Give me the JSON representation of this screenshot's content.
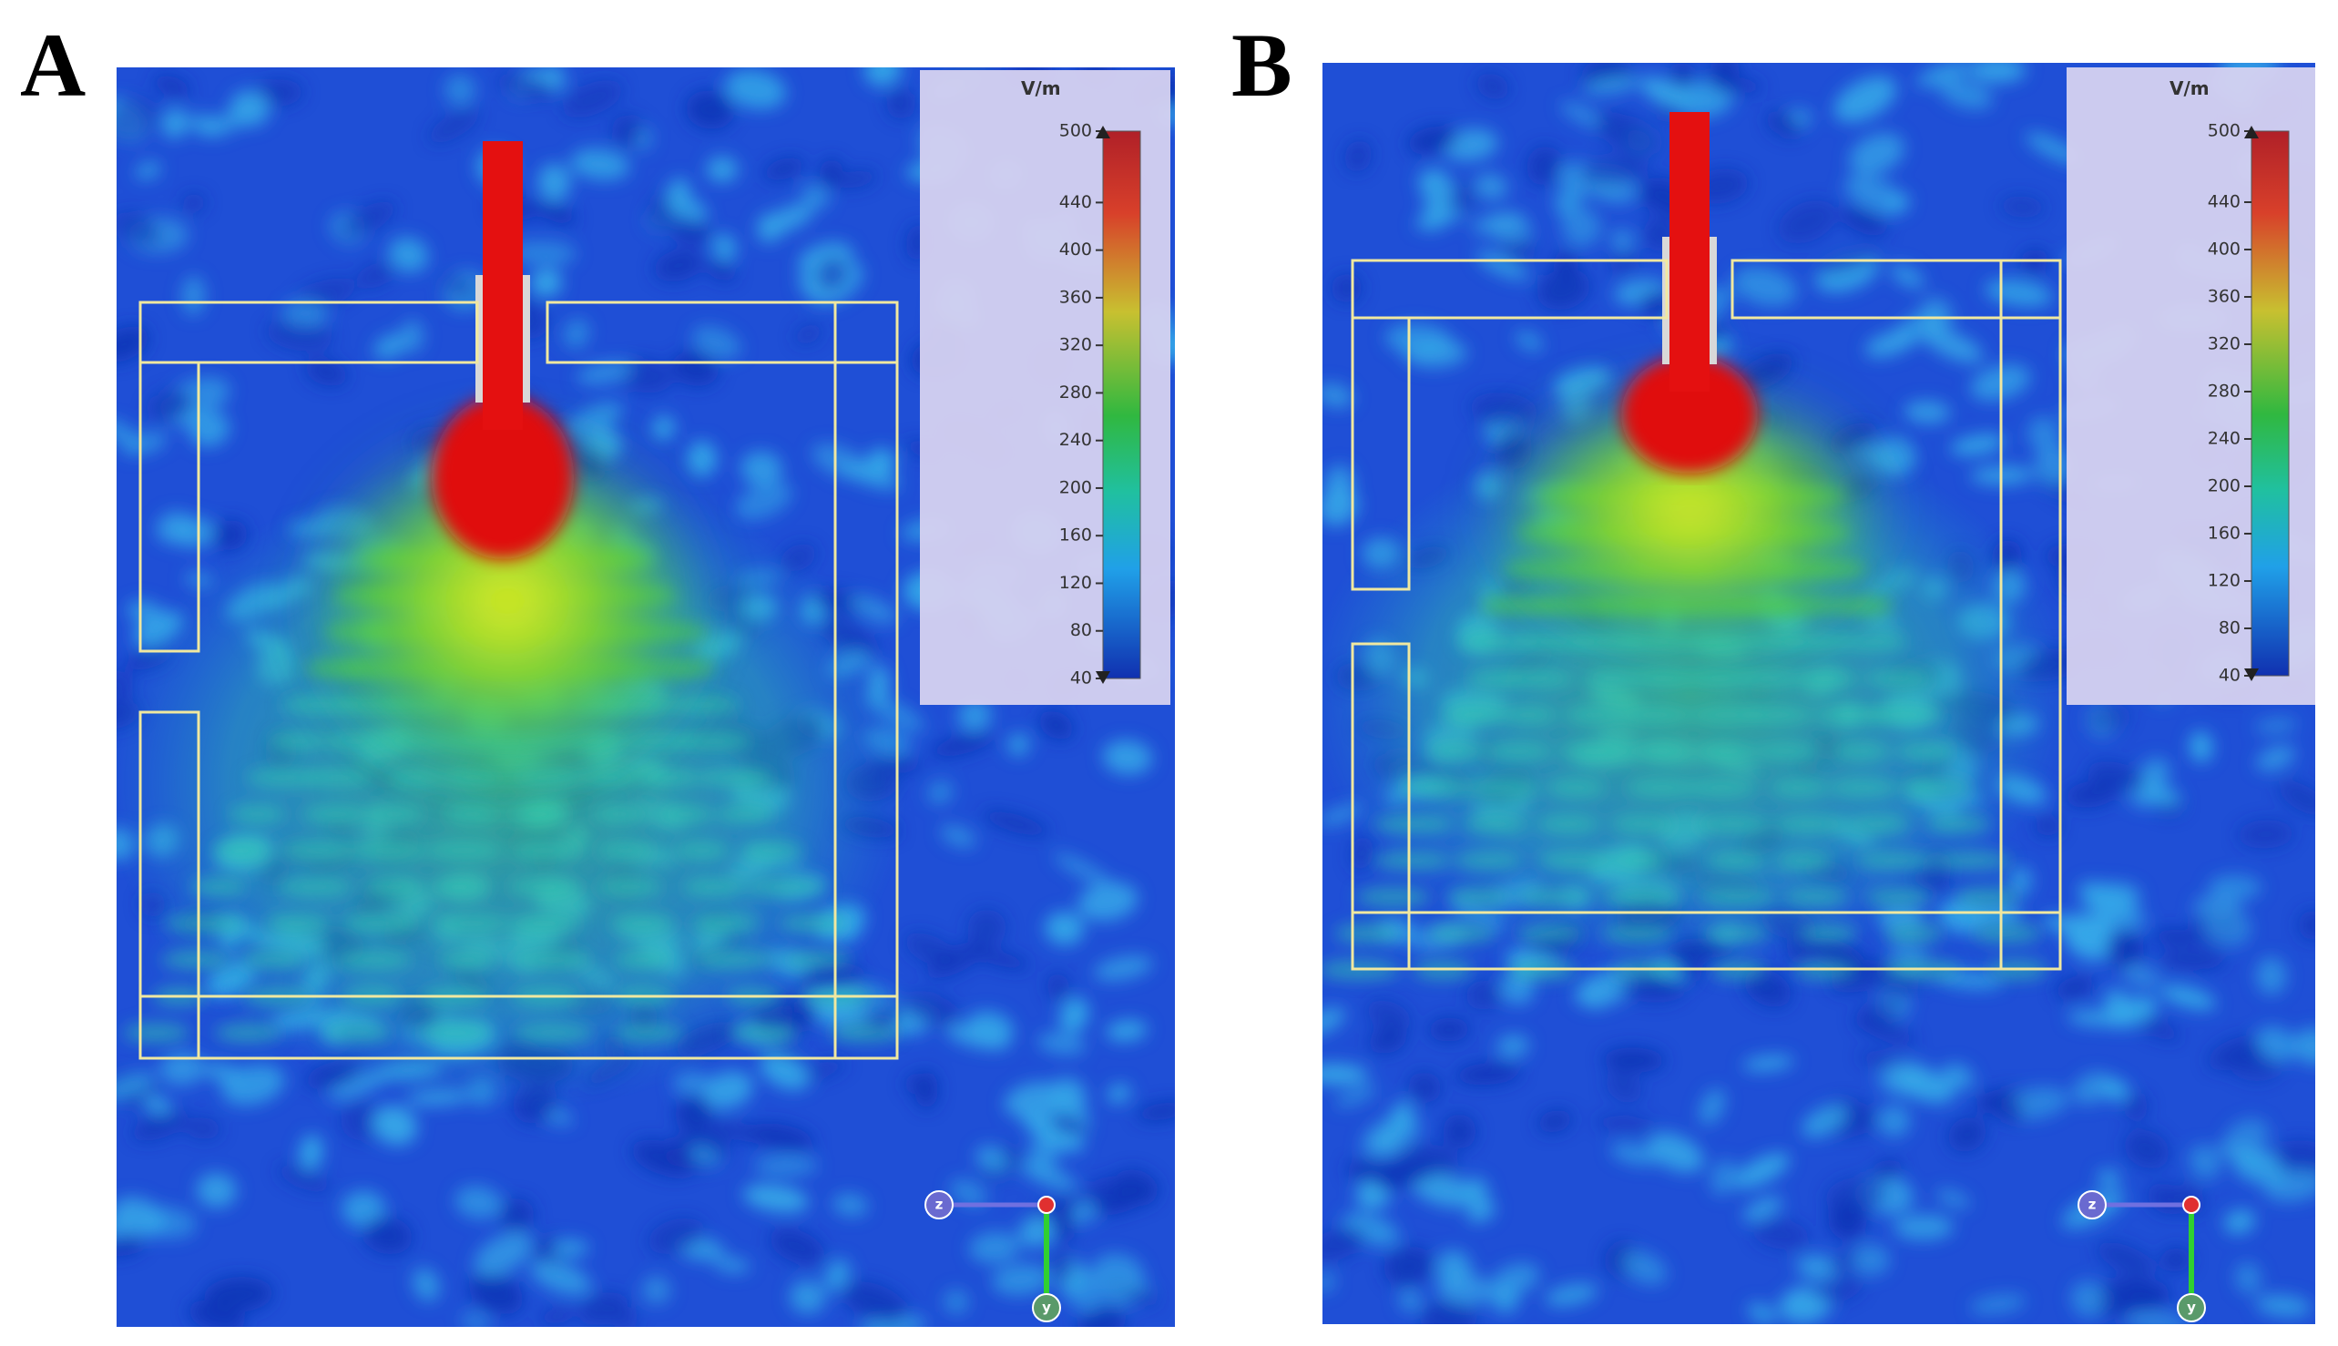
{
  "panels": [
    {
      "label": "A",
      "colorbar": {
        "unit": "V/m",
        "ticks": [
          500,
          440,
          400,
          360,
          320,
          280,
          240,
          200,
          160,
          120,
          80,
          40
        ]
      },
      "axes": [
        "z",
        "y"
      ]
    },
    {
      "label": "B",
      "colorbar": {
        "unit": "V/m",
        "ticks": [
          500,
          440,
          400,
          360,
          320,
          280,
          240,
          200,
          160,
          120,
          80,
          40
        ]
      },
      "axes": [
        "z",
        "y"
      ]
    }
  ]
}
